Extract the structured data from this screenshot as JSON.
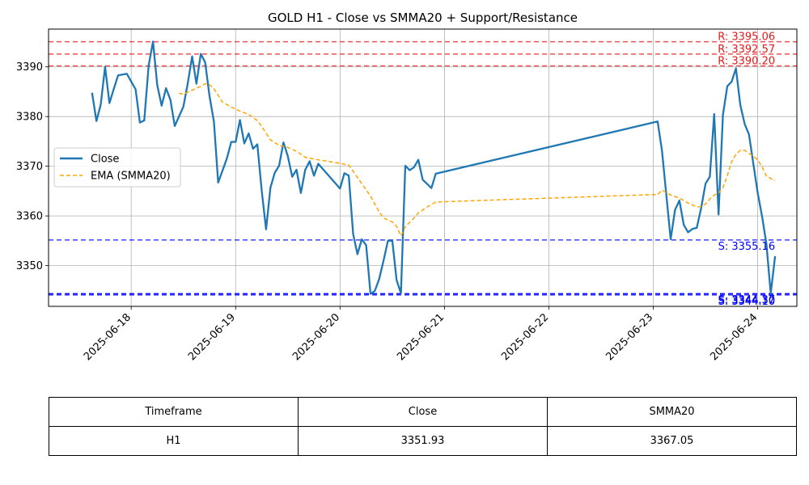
{
  "chart_data": {
    "type": "line",
    "title": "GOLD H1 - Close vs SMMA20 + Support/Resistance",
    "xlabel": "",
    "ylabel": "",
    "xlim": [
      "2025-06-17 05:00",
      "2025-06-24 09:00"
    ],
    "ylim": [
      3341.8,
      3397.6
    ],
    "x_ticks": [
      "2025-06-18",
      "2025-06-19",
      "2025-06-20",
      "2025-06-21",
      "2025-06-22",
      "2025-06-23",
      "2025-06-24"
    ],
    "y_ticks": [
      3350,
      3360,
      3370,
      3380,
      3390
    ],
    "grid": true,
    "legend": {
      "position": "center-left",
      "entries": [
        "Close",
        "EMA (SMMA20)"
      ]
    },
    "series": [
      {
        "name": "Close",
        "color": "#1f77b4",
        "style": "solid",
        "points": [
          [
            "2025-06-17 15:00",
            3384.8
          ],
          [
            "2025-06-17 16:00",
            3379.1
          ],
          [
            "2025-06-17 17:00",
            3382.4
          ],
          [
            "2025-06-17 18:00",
            3390.0
          ],
          [
            "2025-06-17 19:00",
            3382.7
          ],
          [
            "2025-06-17 20:00",
            3385.6
          ],
          [
            "2025-06-17 21:00",
            3388.3
          ],
          [
            "2025-06-17 23:00",
            3388.6
          ],
          [
            "2025-06-18 01:00",
            3385.5
          ],
          [
            "2025-06-18 02:00",
            3378.8
          ],
          [
            "2025-06-18 03:00",
            3379.2
          ],
          [
            "2025-06-18 04:00",
            3390.2
          ],
          [
            "2025-06-18 05:00",
            3395.1
          ],
          [
            "2025-06-18 06:00",
            3386.3
          ],
          [
            "2025-06-18 07:00",
            3382.2
          ],
          [
            "2025-06-18 08:00",
            3385.7
          ],
          [
            "2025-06-18 09:00",
            3383.4
          ],
          [
            "2025-06-18 10:00",
            3378.1
          ],
          [
            "2025-06-18 12:00",
            3382.0
          ],
          [
            "2025-06-18 13:00",
            3386.7
          ],
          [
            "2025-06-18 14:00",
            3392.1
          ],
          [
            "2025-06-18 15:00",
            3386.6
          ],
          [
            "2025-06-18 16:00",
            3392.6
          ],
          [
            "2025-06-18 17:00",
            3390.9
          ],
          [
            "2025-06-18 18:00",
            3384.1
          ],
          [
            "2025-06-18 19:00",
            3379.0
          ],
          [
            "2025-06-18 20:00",
            3366.7
          ],
          [
            "2025-06-18 22:00",
            3371.6
          ],
          [
            "2025-06-18 23:00",
            3374.9
          ],
          [
            "2025-06-19 00:00",
            3374.9
          ],
          [
            "2025-06-19 01:00",
            3379.3
          ],
          [
            "2025-06-19 02:00",
            3374.6
          ],
          [
            "2025-06-19 03:00",
            3376.6
          ],
          [
            "2025-06-19 04:00",
            3373.5
          ],
          [
            "2025-06-19 05:00",
            3374.4
          ],
          [
            "2025-06-19 06:00",
            3365.1
          ],
          [
            "2025-06-19 07:00",
            3357.3
          ],
          [
            "2025-06-19 08:00",
            3365.7
          ],
          [
            "2025-06-19 09:00",
            3368.7
          ],
          [
            "2025-06-19 10:00",
            3370.1
          ],
          [
            "2025-06-19 11:00",
            3374.8
          ],
          [
            "2025-06-19 12:00",
            3372.0
          ],
          [
            "2025-06-19 13:00",
            3367.9
          ],
          [
            "2025-06-19 14:00",
            3369.3
          ],
          [
            "2025-06-19 15:00",
            3364.6
          ],
          [
            "2025-06-19 16:00",
            3369.3
          ],
          [
            "2025-06-19 17:00",
            3371.0
          ],
          [
            "2025-06-19 18:00",
            3368.1
          ],
          [
            "2025-06-19 19:00",
            3370.5
          ],
          [
            "2025-06-20 00:00",
            3365.5
          ],
          [
            "2025-06-20 01:00",
            3368.6
          ],
          [
            "2025-06-20 02:00",
            3368.1
          ],
          [
            "2025-06-20 03:00",
            3356.4
          ],
          [
            "2025-06-20 04:00",
            3352.3
          ],
          [
            "2025-06-20 05:00",
            3355.3
          ],
          [
            "2025-06-20 06:00",
            3354.1
          ],
          [
            "2025-06-20 07:00",
            3344.3
          ],
          [
            "2025-06-20 08:00",
            3344.9
          ],
          [
            "2025-06-20 09:00",
            3347.3
          ],
          [
            "2025-06-20 10:00",
            3351.0
          ],
          [
            "2025-06-20 11:00",
            3355.0
          ],
          [
            "2025-06-20 12:00",
            3355.1
          ],
          [
            "2025-06-20 13:00",
            3347.1
          ],
          [
            "2025-06-20 14:00",
            3344.4
          ],
          [
            "2025-06-20 15:00",
            3370.1
          ],
          [
            "2025-06-20 16:00",
            3369.2
          ],
          [
            "2025-06-20 17:00",
            3369.8
          ],
          [
            "2025-06-20 18:00",
            3371.3
          ],
          [
            "2025-06-20 19:00",
            3367.3
          ],
          [
            "2025-06-20 21:00",
            3365.6
          ],
          [
            "2025-06-20 22:00",
            3368.5
          ],
          [
            "2025-06-23 01:00",
            3379.0
          ],
          [
            "2025-06-23 02:00",
            3373.1
          ],
          [
            "2025-06-23 04:00",
            3355.3
          ],
          [
            "2025-06-23 05:00",
            3361.2
          ],
          [
            "2025-06-23 06:00",
            3363.1
          ],
          [
            "2025-06-23 07:00",
            3358.2
          ],
          [
            "2025-06-23 08:00",
            3356.7
          ],
          [
            "2025-06-23 09:00",
            3357.4
          ],
          [
            "2025-06-23 10:00",
            3357.6
          ],
          [
            "2025-06-23 11:00",
            3361.6
          ],
          [
            "2025-06-23 12:00",
            3366.5
          ],
          [
            "2025-06-23 13:00",
            3367.9
          ],
          [
            "2025-06-23 14:00",
            3380.5
          ],
          [
            "2025-06-23 15:00",
            3360.3
          ],
          [
            "2025-06-23 16:00",
            3380.3
          ],
          [
            "2025-06-23 17:00",
            3386.1
          ],
          [
            "2025-06-23 18:00",
            3387.0
          ],
          [
            "2025-06-23 19:00",
            3389.7
          ],
          [
            "2025-06-23 20:00",
            3382.3
          ],
          [
            "2025-06-23 21:00",
            3378.5
          ],
          [
            "2025-06-23 22:00",
            3376.4
          ],
          [
            "2025-06-24 00:00",
            3364.6
          ],
          [
            "2025-06-24 01:00",
            3359.9
          ],
          [
            "2025-06-24 02:00",
            3354.3
          ],
          [
            "2025-06-24 03:00",
            3344.4
          ],
          [
            "2025-06-24 04:00",
            3351.9
          ]
        ]
      },
      {
        "name": "EMA (SMMA20)",
        "color": "#ffa500",
        "style": "dashed",
        "points": [
          [
            "2025-06-18 11:00",
            3384.7
          ],
          [
            "2025-06-18 12:00",
            3384.5
          ],
          [
            "2025-06-18 14:00",
            3385.3
          ],
          [
            "2025-06-18 16:00",
            3386.1
          ],
          [
            "2025-06-18 17:00",
            3386.6
          ],
          [
            "2025-06-18 18:00",
            3386.4
          ],
          [
            "2025-06-18 19:00",
            3385.6
          ],
          [
            "2025-06-18 21:00",
            3382.9
          ],
          [
            "2025-06-18 23:00",
            3381.9
          ],
          [
            "2025-06-19 01:00",
            3381.1
          ],
          [
            "2025-06-19 03:00",
            3380.4
          ],
          [
            "2025-06-19 05:00",
            3379.2
          ],
          [
            "2025-06-19 06:00",
            3378.0
          ],
          [
            "2025-06-19 08:00",
            3375.3
          ],
          [
            "2025-06-19 10:00",
            3374.2
          ],
          [
            "2025-06-19 12:00",
            3373.8
          ],
          [
            "2025-06-19 14:00",
            3373.0
          ],
          [
            "2025-06-19 16:00",
            3371.8
          ],
          [
            "2025-06-19 19:00",
            3371.3
          ],
          [
            "2025-06-20 00:00",
            3370.6
          ],
          [
            "2025-06-20 02:00",
            3370.2
          ],
          [
            "2025-06-20 03:00",
            3369.0
          ],
          [
            "2025-06-20 05:00",
            3366.5
          ],
          [
            "2025-06-20 07:00",
            3364.0
          ],
          [
            "2025-06-20 09:00",
            3360.8
          ],
          [
            "2025-06-20 10:00",
            3359.6
          ],
          [
            "2025-06-20 12:00",
            3358.8
          ],
          [
            "2025-06-20 13:00",
            3357.9
          ],
          [
            "2025-06-20 14:00",
            3356.0
          ],
          [
            "2025-06-20 15:00",
            3357.8
          ],
          [
            "2025-06-20 17:00",
            3359.6
          ],
          [
            "2025-06-20 18:00",
            3360.6
          ],
          [
            "2025-06-20 20:00",
            3361.8
          ],
          [
            "2025-06-20 22:00",
            3362.8
          ],
          [
            "2025-06-23 00:00",
            3364.3
          ],
          [
            "2025-06-23 01:00",
            3364.3
          ],
          [
            "2025-06-23 02:00",
            3365.2
          ],
          [
            "2025-06-23 04:00",
            3364.2
          ],
          [
            "2025-06-23 06:00",
            3363.6
          ],
          [
            "2025-06-23 08:00",
            3362.6
          ],
          [
            "2025-06-23 10:00",
            3361.8
          ],
          [
            "2025-06-23 11:00",
            3361.9
          ],
          [
            "2025-06-23 12:00",
            3362.4
          ],
          [
            "2025-06-23 13:00",
            3363.4
          ],
          [
            "2025-06-23 14:00",
            3364.2
          ],
          [
            "2025-06-23 15:00",
            3364.6
          ],
          [
            "2025-06-23 16:00",
            3365.7
          ],
          [
            "2025-06-23 17:00",
            3368.1
          ],
          [
            "2025-06-23 18:00",
            3370.9
          ],
          [
            "2025-06-23 19:00",
            3372.4
          ],
          [
            "2025-06-23 20:00",
            3373.2
          ],
          [
            "2025-06-23 21:00",
            3373.2
          ],
          [
            "2025-06-23 22:00",
            3372.6
          ],
          [
            "2025-06-23 23:00",
            3372.0
          ],
          [
            "2025-06-24 00:00",
            3371.3
          ],
          [
            "2025-06-24 01:00",
            3369.9
          ],
          [
            "2025-06-24 02:00",
            3368.0
          ],
          [
            "2025-06-24 04:00",
            3367.1
          ]
        ]
      }
    ],
    "resistance_levels": [
      {
        "value": 3395.06,
        "label": "R: 3395.06"
      },
      {
        "value": 3392.57,
        "label": "R: 3392.57"
      },
      {
        "value": 3390.2,
        "label": "R: 3390.20"
      }
    ],
    "support_levels": [
      {
        "value": 3355.16,
        "label": "S: 3355.16"
      },
      {
        "value": 3344.37,
        "label": "S: 3344.37"
      },
      {
        "value": 3344.3,
        "label": "S: 3344.30"
      },
      {
        "value": 3344.1,
        "label": "S: 3344.10"
      }
    ],
    "colors": {
      "close": "#1f77b4",
      "smma": "#ffa500",
      "resistance": "#e41a1c",
      "support": "#0000ff",
      "grid": "#b0b0b0"
    }
  },
  "table": {
    "headers": [
      "Timeframe",
      "Close",
      "SMMA20"
    ],
    "rows": [
      [
        "H1",
        "3351.93",
        "3367.05"
      ]
    ]
  }
}
